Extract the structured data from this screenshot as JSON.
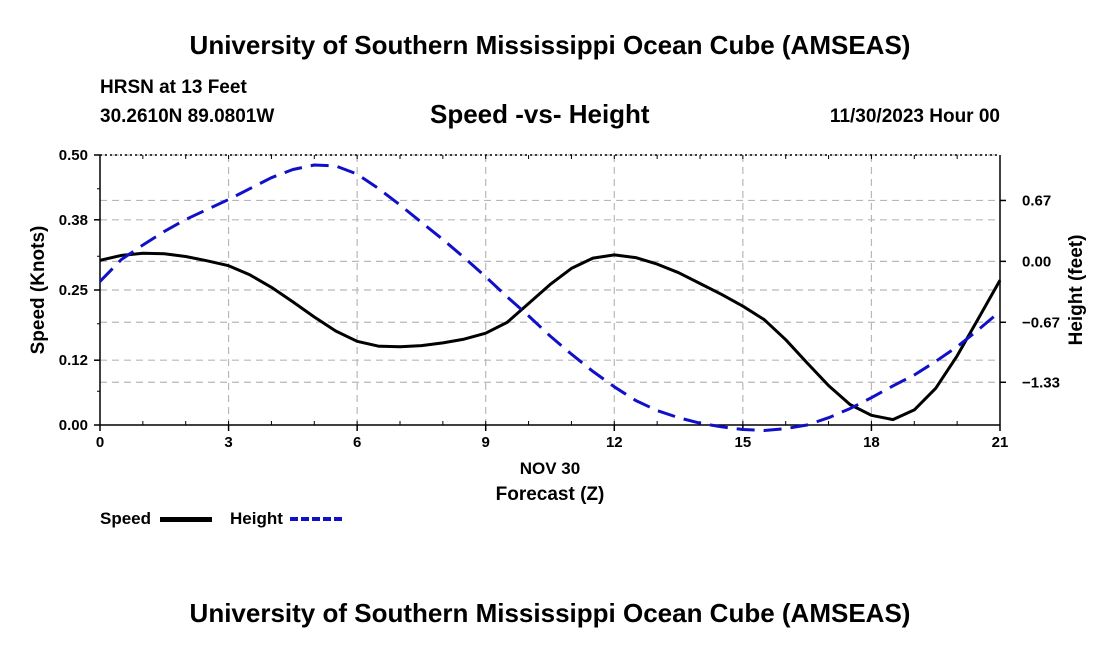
{
  "header": {
    "title": "University of Southern Mississippi Ocean Cube (AMSEAS)",
    "station": "HRSN at 13 Feet",
    "coords": "30.2610N  89.0801W",
    "subtitle": "Speed -vs- Height",
    "datetime": "11/30/2023 Hour 00"
  },
  "footer": {
    "title": "University of Southern Mississippi Ocean Cube (AMSEAS)"
  },
  "chart_data": {
    "type": "line",
    "title": "Speed -vs- Height",
    "xlabel_date": "NOV 30",
    "xlabel": "Forecast (Z)",
    "ylabel": "Speed (Knots)",
    "y2label": "Height (feet)",
    "xlim": [
      0,
      21
    ],
    "ylim": [
      0,
      0.5
    ],
    "y2lim": [
      -1.8,
      1.17
    ],
    "x_ticks": [
      0,
      3,
      6,
      9,
      12,
      15,
      18,
      21
    ],
    "y_ticks": [
      0.0,
      0.12,
      0.25,
      0.38,
      0.5
    ],
    "y_tick_labels": [
      "0.00",
      "0.12",
      "0.25",
      "0.38",
      "0.50"
    ],
    "y2_ticks": [
      0.67,
      0.0,
      -0.67,
      -1.33
    ],
    "y2_tick_labels": [
      "0.67",
      "0.00",
      "−0.67",
      "−1.33"
    ],
    "grid": true,
    "series": [
      {
        "name": "Speed",
        "color": "#000000",
        "dash": "solid",
        "axis": "left",
        "x": [
          0,
          0.5,
          1,
          1.5,
          2,
          2.5,
          3,
          3.5,
          4,
          4.5,
          5,
          5.5,
          6,
          6.5,
          7,
          7.5,
          8,
          8.5,
          9,
          9.5,
          10,
          10.5,
          11,
          11.5,
          12,
          12.5,
          13,
          13.5,
          14,
          14.5,
          15,
          15.5,
          16,
          16.5,
          17,
          17.5,
          18,
          18.5,
          19,
          19.5,
          20,
          20.5,
          21
        ],
        "values": [
          0.305,
          0.314,
          0.318,
          0.317,
          0.312,
          0.304,
          0.295,
          0.278,
          0.255,
          0.228,
          0.2,
          0.174,
          0.155,
          0.146,
          0.145,
          0.147,
          0.152,
          0.159,
          0.17,
          0.19,
          0.225,
          0.26,
          0.29,
          0.309,
          0.315,
          0.31,
          0.298,
          0.282,
          0.262,
          0.242,
          0.22,
          0.195,
          0.158,
          0.115,
          0.073,
          0.038,
          0.018,
          0.01,
          0.028,
          0.068,
          0.128,
          0.198,
          0.268
        ]
      },
      {
        "name": "Height",
        "color": "#1010c8",
        "dash": "dashed",
        "axis": "right",
        "x": [
          0,
          0.5,
          1,
          1.5,
          2,
          2.5,
          3,
          3.5,
          4,
          4.5,
          5,
          5.5,
          6,
          6.5,
          7,
          7.5,
          8,
          8.5,
          9,
          9.5,
          10,
          10.5,
          11,
          11.5,
          12,
          12.5,
          13,
          13.5,
          14,
          14.5,
          15,
          15.5,
          16,
          16.5,
          17,
          17.5,
          18,
          18.5,
          19,
          19.5,
          20,
          20.5,
          21
        ],
        "values": [
          -0.22,
          0.02,
          0.18,
          0.33,
          0.46,
          0.57,
          0.68,
          0.8,
          0.92,
          1.01,
          1.06,
          1.05,
          0.96,
          0.8,
          0.62,
          0.43,
          0.24,
          0.04,
          -0.17,
          -0.39,
          -0.6,
          -0.82,
          -1.02,
          -1.21,
          -1.38,
          -1.53,
          -1.64,
          -1.72,
          -1.78,
          -1.82,
          -1.85,
          -1.86,
          -1.84,
          -1.8,
          -1.72,
          -1.62,
          -1.5,
          -1.37,
          -1.25,
          -1.1,
          -0.94,
          -0.75,
          -0.55
        ]
      }
    ],
    "legend": [
      {
        "label": "Speed"
      },
      {
        "label": "Height"
      }
    ],
    "legend_position": "bottom-left"
  }
}
